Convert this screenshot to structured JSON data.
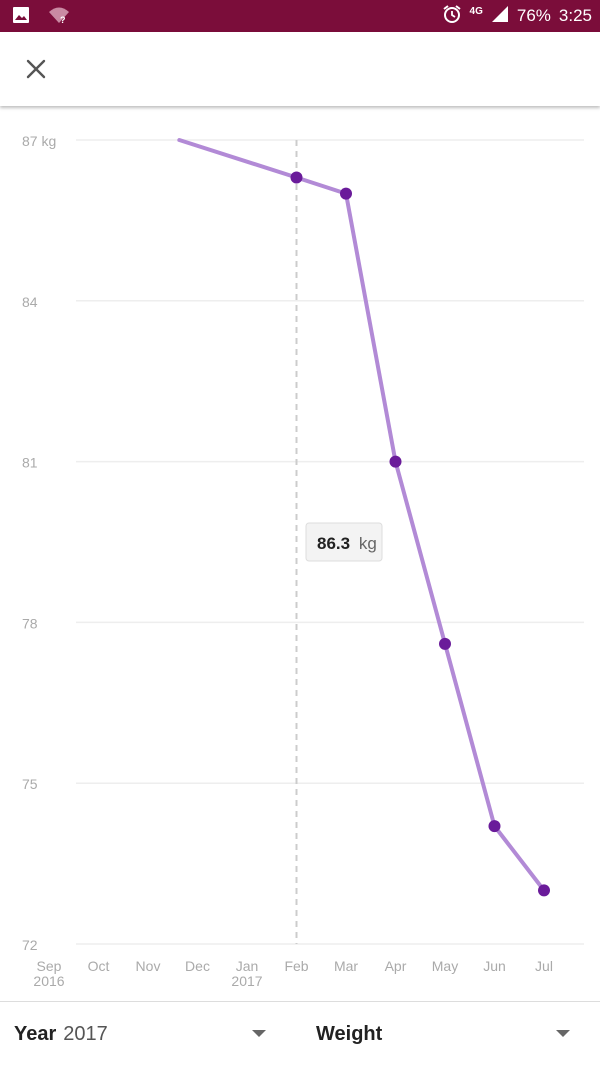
{
  "status_bar": {
    "battery": "76%",
    "time": "3:25",
    "network": "4G",
    "icons": [
      "image-icon",
      "wifi-unknown-icon",
      "alarm-icon",
      "signal-icon"
    ]
  },
  "app_bar": {
    "close_icon": "close-icon"
  },
  "tooltip": {
    "value": "86.3",
    "unit": "kg"
  },
  "chart_data": {
    "type": "line",
    "y_unit": "kg",
    "ylim": [
      72,
      87
    ],
    "y_ticks": [
      "87 kg",
      "84",
      "81",
      "78",
      "75",
      "72"
    ],
    "x_ticks": [
      {
        "label": "Sep",
        "sub": "2016"
      },
      {
        "label": "Oct",
        "sub": ""
      },
      {
        "label": "Nov",
        "sub": ""
      },
      {
        "label": "Dec",
        "sub": ""
      },
      {
        "label": "Jan",
        "sub": "2017"
      },
      {
        "label": "Feb",
        "sub": ""
      },
      {
        "label": "Mar",
        "sub": ""
      },
      {
        "label": "Apr",
        "sub": ""
      },
      {
        "label": "May",
        "sub": ""
      },
      {
        "label": "Jun",
        "sub": ""
      },
      {
        "label": "Jul",
        "sub": ""
      }
    ],
    "series": [
      {
        "points": [
          {
            "x": "2016-11-20",
            "y": 87.0
          },
          {
            "x": "2017-02-01",
            "y": 86.3
          },
          {
            "x": "2017-03-01",
            "y": 86.0
          },
          {
            "x": "2017-04-01",
            "y": 81.0
          },
          {
            "x": "2017-05-01",
            "y": 77.6
          },
          {
            "x": "2017-06-01",
            "y": 74.2
          },
          {
            "x": "2017-07-01",
            "y": 73.0
          }
        ],
        "markers": [
          false,
          true,
          true,
          true,
          true,
          true,
          true
        ]
      }
    ],
    "highlight_x": "2017-02-01",
    "grid": true,
    "colors": {
      "line": "#b28ad6",
      "marker": "#6a1b9a",
      "grid": "#eeeeee"
    }
  },
  "bottom_bar": {
    "year_label": "Year",
    "year_value": "2017",
    "metric_label": "Weight"
  }
}
